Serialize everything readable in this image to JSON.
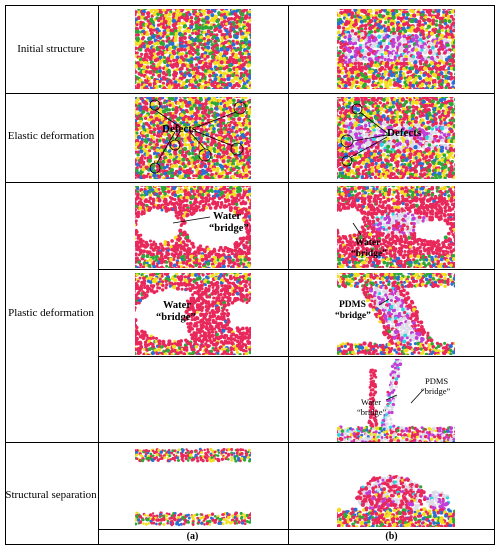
{
  "stages": {
    "initial": "Initial structure",
    "elastic": "Elastic deformation",
    "plastic": "Plastic deformation",
    "separation": "Structural separation"
  },
  "columns": {
    "a": "(a)",
    "b": "(b)"
  },
  "annotations": {
    "defects": "Defects",
    "water": "Water",
    "bridge": "“bridge”",
    "pdms": "PDMS"
  },
  "colors": {
    "water_red": "#e8285a",
    "yellow": "#f2e020",
    "green": "#2fa83a",
    "blue": "#2a6fd6",
    "pdms_magenta": "#c23fd6",
    "pdms_white": "#dcdde8",
    "cyan": "#2ad6e0"
  }
}
